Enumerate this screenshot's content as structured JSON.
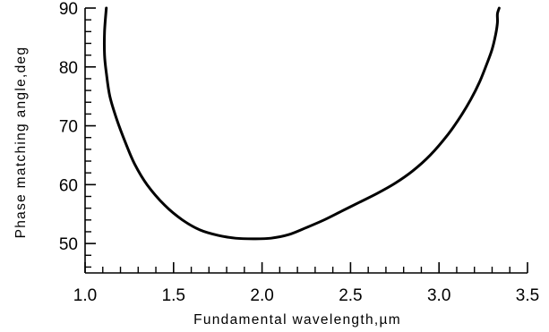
{
  "chart_data": {
    "type": "line",
    "title": "",
    "xlabel": "Fundamental wavelength,µm",
    "ylabel": "Phase matching angle,deg",
    "xlim": [
      1.0,
      3.5
    ],
    "ylim": [
      45,
      90
    ],
    "x_ticks": [
      "1.0",
      "1.5",
      "2.0",
      "2.5",
      "3.0",
      "3.5"
    ],
    "y_ticks": [
      "50",
      "60",
      "70",
      "80",
      "90"
    ],
    "x_minor_step": 0.1,
    "y_minor_step": 2,
    "grid": false,
    "legend": "none",
    "line_color": "#000000",
    "series": [
      {
        "x": [
          1.12,
          1.11,
          1.11,
          1.12,
          1.14,
          1.18,
          1.23,
          1.28,
          1.35,
          1.45,
          1.55,
          1.65,
          1.75,
          1.85,
          1.95,
          2.05,
          2.15,
          2.25,
          2.35,
          2.45,
          2.55,
          2.65,
          2.75,
          2.85,
          2.95,
          3.05,
          3.12,
          3.18,
          3.23,
          3.27,
          3.3,
          3.32,
          3.33,
          3.33,
          3.34
        ],
        "y": [
          90,
          86,
          82,
          79,
          75,
          71,
          67,
          63.5,
          60,
          56.5,
          54,
          52.3,
          51.4,
          50.9,
          50.8,
          50.9,
          51.5,
          52.7,
          54,
          55.5,
          57,
          58.5,
          60.2,
          62.3,
          65,
          68.5,
          71.5,
          74.5,
          77.5,
          80.5,
          83,
          85.5,
          87.5,
          89,
          90
        ]
      }
    ]
  }
}
